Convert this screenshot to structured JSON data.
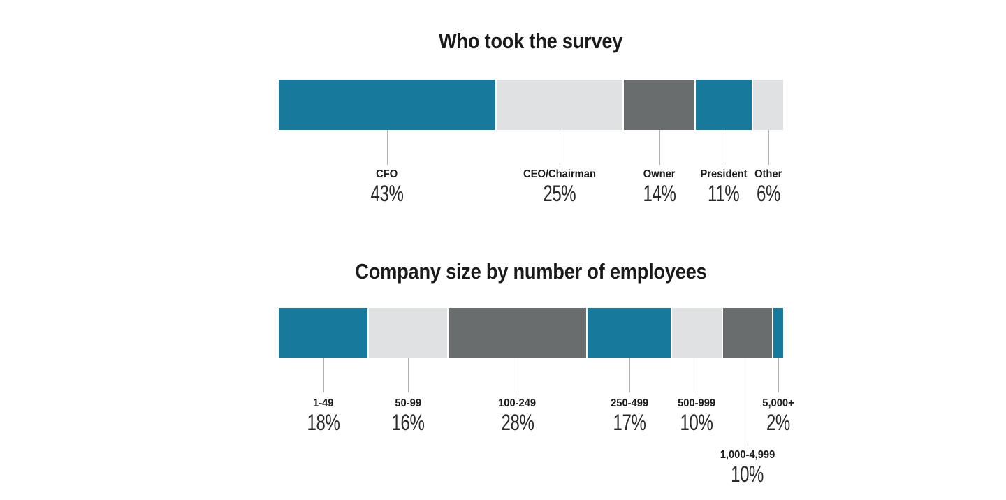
{
  "page": {
    "background": "#FFFFFF",
    "text_color": "#1A1A1A"
  },
  "colors": {
    "teal": "#17799B",
    "light_gray": "#E0E1E2",
    "dark_gray": "#6A6D6E",
    "leader_line": "#B0B1B3"
  },
  "chart_data": [
    {
      "type": "bar",
      "variant": "horizontal-stacked-100pct",
      "title": "Who took the survey",
      "categories": [
        "CFO",
        "CEO/Chairman",
        "Owner",
        "President",
        "Other"
      ],
      "values": [
        43,
        25,
        14,
        11,
        6
      ],
      "value_labels": [
        "43%",
        "25%",
        "14%",
        "11%",
        "6%"
      ],
      "segment_colors": [
        "#17799B",
        "#E0E1E2",
        "#6A6D6E",
        "#17799B",
        "#E0E1E2"
      ],
      "segment_gap_color": "#FFFFFF",
      "axis": "none",
      "grid": false,
      "legend_position": "labels-below-bar-with-leader-lines",
      "label_rows": [
        1,
        1,
        1,
        1,
        1
      ]
    },
    {
      "type": "bar",
      "variant": "horizontal-stacked-100pct",
      "title": "Company size by number of employees",
      "categories": [
        "1-49",
        "50-99",
        "100-249",
        "250-499",
        "500-999",
        "1,000-4,999",
        "5,000+"
      ],
      "values": [
        18,
        16,
        28,
        17,
        10,
        10,
        2
      ],
      "value_labels": [
        "18%",
        "16%",
        "28%",
        "17%",
        "10%",
        "10%",
        "2%"
      ],
      "segment_colors": [
        "#17799B",
        "#E0E1E2",
        "#6A6D6E",
        "#17799B",
        "#E0E1E2",
        "#6A6D6E",
        "#17799B"
      ],
      "segment_gap_color": "#FFFFFF",
      "axis": "none",
      "grid": false,
      "legend_position": "labels-below-bar-with-leader-lines",
      "label_rows": [
        1,
        1,
        1,
        1,
        1,
        2,
        1
      ]
    }
  ]
}
